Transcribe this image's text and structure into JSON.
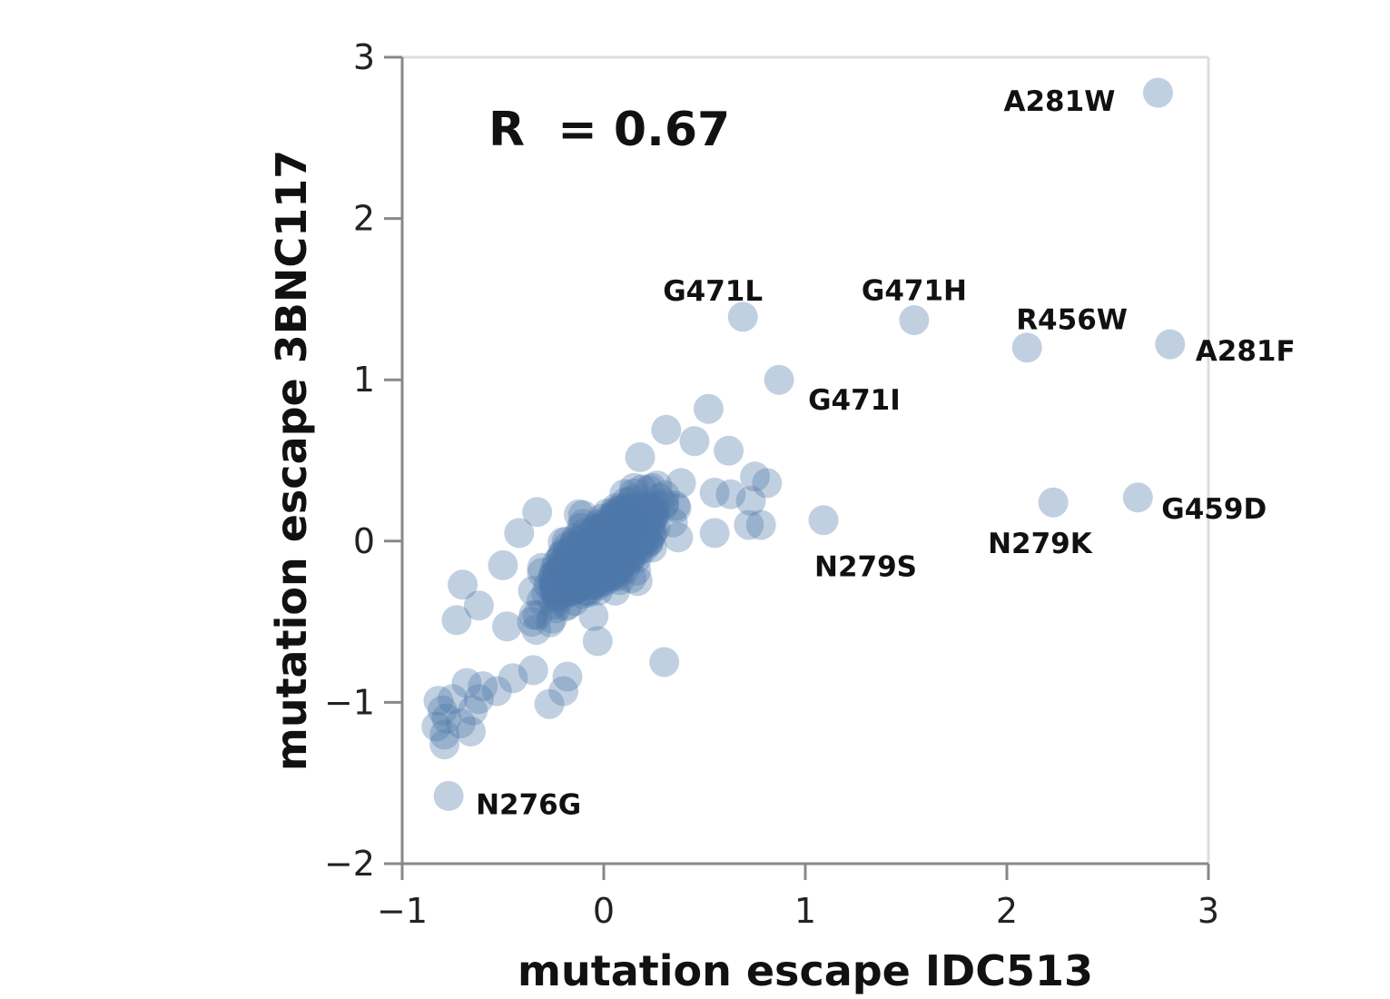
{
  "chart_data": {
    "type": "scatter",
    "xlabel": "mutation escape IDC513",
    "ylabel": "mutation escape 3BNC117",
    "xlim": [
      -1,
      3
    ],
    "ylim": [
      -2,
      3
    ],
    "xticks": [
      "−1",
      "0",
      "1",
      "2",
      "3"
    ],
    "yticks": [
      "−2",
      "−1",
      "0",
      "1",
      "2",
      "3"
    ],
    "annotation": "R  = 0.67",
    "point_color": "#4c78a8",
    "point_opacity": 0.35,
    "labeled_points": [
      {
        "label": "A281W",
        "x": 2.75,
        "y": 2.78
      },
      {
        "label": "G471L",
        "x": 0.69,
        "y": 1.39
      },
      {
        "label": "G471H",
        "x": 1.54,
        "y": 1.37
      },
      {
        "label": "R456W",
        "x": 2.1,
        "y": 1.2
      },
      {
        "label": "A281F",
        "x": 2.81,
        "y": 1.22
      },
      {
        "label": "G471I",
        "x": 0.87,
        "y": 1.0
      },
      {
        "label": "G459D",
        "x": 2.65,
        "y": 0.27
      },
      {
        "label": "N279K",
        "x": 2.23,
        "y": 0.24
      },
      {
        "label": "N279S",
        "x": 1.09,
        "y": 0.13
      },
      {
        "label": "N276G",
        "x": -0.77,
        "y": -1.58
      }
    ],
    "points": [
      {
        "x": 0.52,
        "y": 0.82
      },
      {
        "x": 0.31,
        "y": 0.69
      },
      {
        "x": 0.45,
        "y": 0.62
      },
      {
        "x": 0.62,
        "y": 0.56
      },
      {
        "x": 0.18,
        "y": 0.52
      },
      {
        "x": 0.75,
        "y": 0.4
      },
      {
        "x": 0.81,
        "y": 0.36
      },
      {
        "x": 0.55,
        "y": 0.3
      },
      {
        "x": 0.63,
        "y": 0.29
      },
      {
        "x": 0.73,
        "y": 0.25
      },
      {
        "x": 0.72,
        "y": 0.1
      },
      {
        "x": 0.78,
        "y": 0.1
      },
      {
        "x": 0.55,
        "y": 0.05
      },
      {
        "x": -0.33,
        "y": 0.18
      },
      {
        "x": -0.42,
        "y": 0.05
      },
      {
        "x": -0.5,
        "y": -0.15
      },
      {
        "x": -0.7,
        "y": -0.27
      },
      {
        "x": -0.62,
        "y": -0.4
      },
      {
        "x": -0.73,
        "y": -0.49
      },
      {
        "x": -0.03,
        "y": -0.62
      },
      {
        "x": 0.3,
        "y": -0.75
      },
      {
        "x": -0.35,
        "y": -0.8
      },
      {
        "x": -0.45,
        "y": -0.85
      },
      {
        "x": -0.18,
        "y": -0.84
      },
      {
        "x": -0.53,
        "y": -0.93
      },
      {
        "x": -0.6,
        "y": -0.9
      },
      {
        "x": -0.68,
        "y": -0.88
      },
      {
        "x": -0.62,
        "y": -0.98
      },
      {
        "x": -0.75,
        "y": -0.98
      },
      {
        "x": -0.2,
        "y": -0.93
      },
      {
        "x": -0.27,
        "y": -1.01
      },
      {
        "x": -0.82,
        "y": -0.99
      },
      {
        "x": -0.8,
        "y": -1.05
      },
      {
        "x": -0.78,
        "y": -1.1
      },
      {
        "x": -0.65,
        "y": -1.05
      },
      {
        "x": -0.71,
        "y": -1.13
      },
      {
        "x": -0.83,
        "y": -1.15
      },
      {
        "x": -0.79,
        "y": -1.2
      },
      {
        "x": -0.66,
        "y": -1.18
      },
      {
        "x": -0.79,
        "y": -1.26
      }
    ],
    "cluster": {
      "description_note": "dense cloud of overlapping points",
      "x_range": [
        -0.45,
        0.45
      ],
      "y_range": [
        -0.55,
        0.45
      ],
      "trend_slope": 1.0
    }
  }
}
